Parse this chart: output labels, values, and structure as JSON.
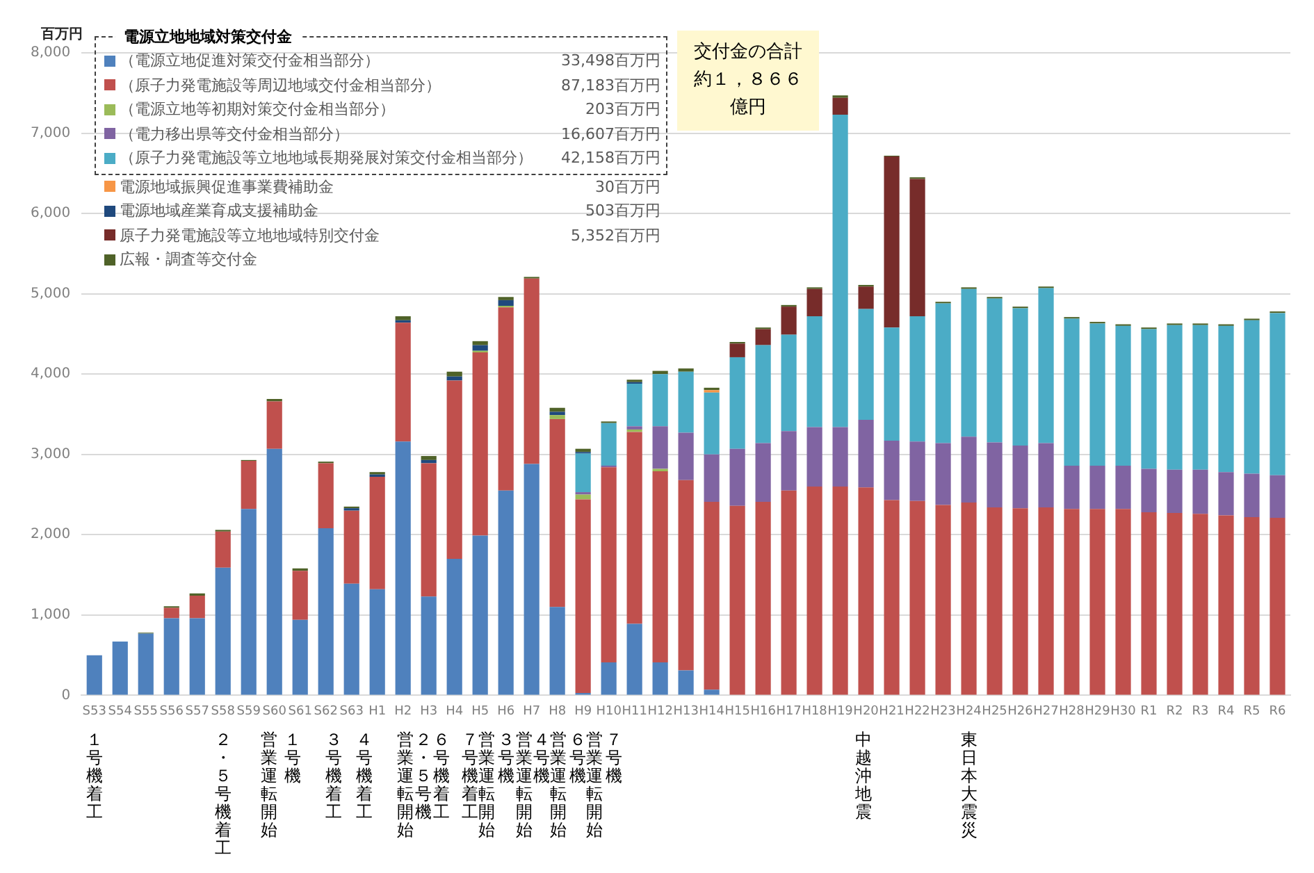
{
  "chart_data": {
    "type": "bar",
    "stacked": true,
    "ylabel": "百万円",
    "legend_title": "電源立地地域対策交付金",
    "legend": "top left",
    "grid": "y",
    "categories": [
      "S53",
      "S54",
      "S55",
      "S56",
      "S57",
      "S58",
      "S59",
      "S60",
      "S61",
      "S62",
      "S63",
      "H1",
      "H2",
      "H3",
      "H4",
      "H5",
      "H6",
      "H7",
      "H8",
      "H9",
      "H10",
      "H11",
      "H12",
      "H13",
      "H14",
      "H15",
      "H16",
      "H17",
      "H18",
      "H19",
      "H20",
      "H21",
      "H22",
      "H23",
      "H24",
      "H25",
      "H26",
      "H27",
      "H28",
      "H29",
      "H30",
      "R1",
      "R2",
      "R3",
      "R4",
      "R5",
      "R6"
    ],
    "ylim": [
      0,
      8000
    ],
    "yticks": [
      0,
      {
        "value": 1000,
        "label": "1,000"
      },
      {
        "value": 2000,
        "label": "2,000"
      },
      {
        "value": 3000,
        "label": "3,000"
      },
      {
        "value": 4000,
        "label": "4,000"
      },
      {
        "value": 5000,
        "label": "5,000"
      },
      {
        "value": 6000,
        "label": "6,000"
      },
      {
        "value": 7000,
        "label": "7,000"
      },
      {
        "value": 8000,
        "label": "8,000"
      }
    ],
    "series": [
      {
        "name": "（電源立地促進対策交付金相当部分）",
        "color": "#4f81bd",
        "values": [
          500,
          670,
          770,
          960,
          960,
          1590,
          2320,
          3070,
          940,
          2080,
          1390,
          1320,
          3160,
          1230,
          1700,
          1990,
          2550,
          2880,
          1100,
          30,
          410,
          890,
          410,
          310,
          70,
          null,
          null,
          null,
          null,
          null,
          null,
          null,
          null,
          null,
          null,
          null,
          null,
          null,
          null,
          null,
          null,
          null,
          null,
          null,
          null,
          null,
          null
        ]
      },
      {
        "name": "（原子力発電施設等周辺地域交付金相当部分）",
        "color": "#c0504d",
        "values": [
          null,
          null,
          null,
          130,
          280,
          450,
          600,
          590,
          610,
          810,
          910,
          1400,
          1480,
          1660,
          2220,
          2280,
          2280,
          2310,
          2340,
          2410,
          2430,
          2390,
          2380,
          2370,
          2340,
          2360,
          2410,
          2550,
          2600,
          2600,
          2590,
          2430,
          2420,
          2370,
          2400,
          2340,
          2330,
          2340,
          2320,
          2320,
          2320,
          2280,
          2270,
          2260,
          2240,
          2220,
          2210
        ]
      },
      {
        "name": "（電源立地等初期対策交付金相当部分）",
        "color": "#9bbb59",
        "values": [
          null,
          null,
          null,
          null,
          null,
          null,
          null,
          null,
          null,
          null,
          null,
          null,
          null,
          null,
          null,
          20,
          20,
          null,
          50,
          60,
          null,
          30,
          30,
          null,
          null,
          null,
          null,
          null,
          null,
          null,
          null,
          null,
          null,
          null,
          null,
          null,
          null,
          null,
          null,
          null,
          null,
          null,
          null,
          null,
          null,
          null,
          null
        ]
      },
      {
        "name": "（電力移出県等交付金相当部分）",
        "color": "#8064a2",
        "values": [
          null,
          null,
          null,
          null,
          null,
          null,
          null,
          null,
          null,
          null,
          null,
          null,
          null,
          null,
          null,
          null,
          null,
          null,
          null,
          30,
          20,
          40,
          530,
          590,
          590,
          710,
          730,
          740,
          740,
          740,
          840,
          740,
          740,
          770,
          820,
          810,
          780,
          800,
          540,
          540,
          540,
          540,
          540,
          550,
          540,
          540,
          530
        ]
      },
      {
        "name": "（原子力発電施設等立地地域長期発展対策交付金相当部分）",
        "color": "#4bacc6",
        "values": [
          null,
          null,
          null,
          null,
          null,
          null,
          null,
          null,
          null,
          null,
          null,
          null,
          null,
          null,
          null,
          null,
          null,
          null,
          null,
          480,
          530,
          530,
          650,
          760,
          770,
          1140,
          1220,
          1200,
          1380,
          3890,
          1380,
          1410,
          1560,
          1740,
          1840,
          1790,
          1710,
          1930,
          1830,
          1770,
          1740,
          1740,
          1800,
          1800,
          1820,
          1910,
          2020
        ]
      },
      {
        "name": "電源地域振興促進事業費補助金",
        "color": "#f79646",
        "values": [
          null,
          null,
          null,
          null,
          null,
          null,
          null,
          null,
          null,
          null,
          null,
          null,
          null,
          null,
          null,
          null,
          null,
          null,
          null,
          null,
          null,
          null,
          null,
          null,
          30,
          null,
          null,
          null,
          null,
          null,
          null,
          null,
          null,
          null,
          null,
          null,
          null,
          null,
          null,
          null,
          null,
          null,
          null,
          null,
          null,
          null,
          null
        ]
      },
      {
        "name": "電源地域産業育成支援補助金",
        "color": "#1f497d",
        "values": [
          null,
          null,
          null,
          null,
          null,
          null,
          null,
          null,
          null,
          null,
          30,
          30,
          30,
          40,
          50,
          70,
          70,
          null,
          40,
          20,
          null,
          20,
          null,
          null,
          null,
          null,
          null,
          null,
          null,
          null,
          null,
          null,
          null,
          null,
          null,
          null,
          null,
          null,
          null,
          null,
          null,
          null,
          null,
          null,
          null,
          null,
          null
        ]
      },
      {
        "name": "原子力発電施設等立地地域特別交付金",
        "color": "#772c2a",
        "values": [
          null,
          null,
          null,
          null,
          null,
          null,
          null,
          null,
          null,
          null,
          null,
          null,
          null,
          null,
          null,
          null,
          null,
          null,
          null,
          null,
          null,
          null,
          null,
          null,
          null,
          170,
          200,
          350,
          340,
          210,
          280,
          2130,
          1710,
          null,
          null,
          null,
          null,
          null,
          null,
          null,
          null,
          null,
          null,
          null,
          null,
          null,
          null
        ]
      },
      {
        "name": "広報・調査等交付金",
        "color": "#4f6228",
        "values": [
          null,
          null,
          10,
          20,
          30,
          20,
          10,
          30,
          30,
          20,
          20,
          30,
          50,
          50,
          60,
          50,
          40,
          20,
          50,
          40,
          20,
          30,
          40,
          40,
          30,
          20,
          20,
          20,
          20,
          30,
          20,
          10,
          20,
          20,
          20,
          20,
          20,
          20,
          20,
          20,
          20,
          20,
          20,
          20,
          20,
          20,
          20
        ]
      }
    ],
    "annotations": [
      "33,498百万円",
      "87,183百万円",
      "203百万円",
      "16,607百万円",
      "42,158百万円",
      "30百万円",
      "503百万円",
      "5,352百万円",
      "交付金の合計約１，８６６億円",
      "１号機着工",
      "２・５号機着工",
      "営業運転開始",
      "１号機",
      "３号機着工",
      "４号機着工",
      "営業運転開始",
      "２・５号機",
      "６号機着工",
      "７号機着工",
      "営業運転開始",
      "３号機",
      "営業運転開始",
      "４号機",
      "営業運転開始",
      "６号機",
      "営業運転開始",
      "７号機",
      "中越沖地震",
      "東日本大震災"
    ]
  }
}
